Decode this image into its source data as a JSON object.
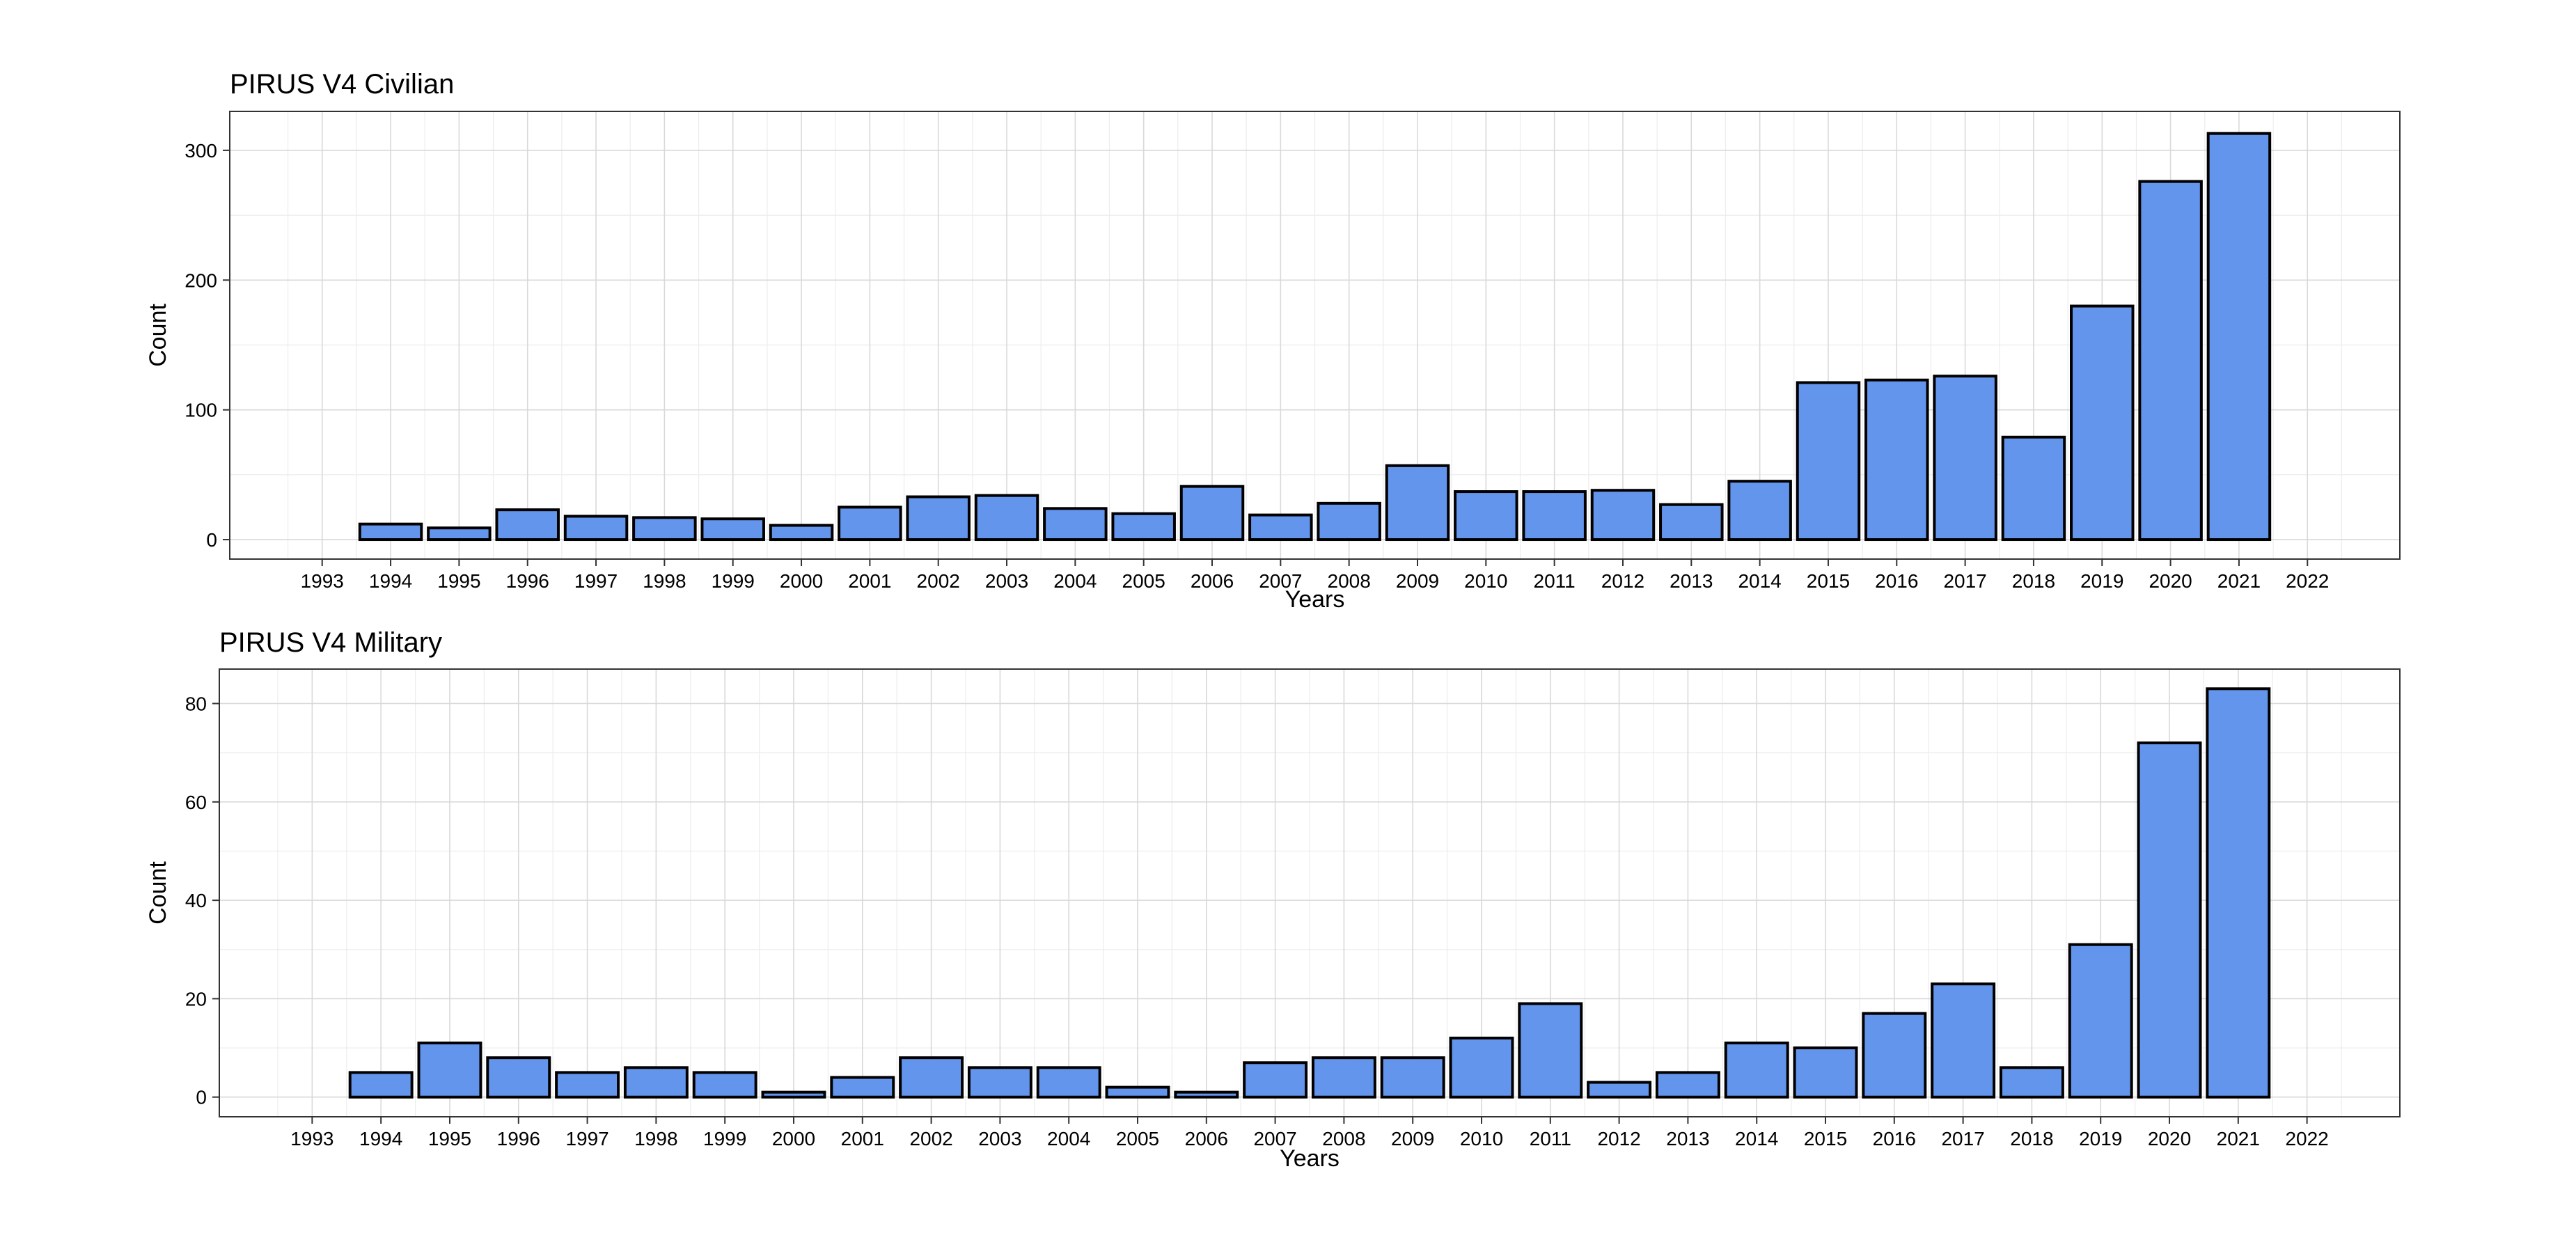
{
  "colors": {
    "bar_fill": "#6495ED",
    "bar_stroke": "#000000"
  },
  "chart_data": [
    {
      "type": "bar",
      "title": "PIRUS V4 Civilian",
      "xlabel": "Years",
      "ylabel": "Count",
      "xlim": [
        1993,
        2022
      ],
      "x_ticks": [
        "1993",
        "1994",
        "1995",
        "1996",
        "1997",
        "1998",
        "1999",
        "2000",
        "2001",
        "2002",
        "2003",
        "2004",
        "2005",
        "2006",
        "2007",
        "2008",
        "2009",
        "2010",
        "2011",
        "2012",
        "2013",
        "2014",
        "2015",
        "2016",
        "2017",
        "2018",
        "2019",
        "2020",
        "2021",
        "2022"
      ],
      "ylim": [
        -15,
        330
      ],
      "y_ticks": [
        0,
        100,
        200,
        300
      ],
      "grid": true,
      "categories": [
        "1994",
        "1995",
        "1996",
        "1997",
        "1998",
        "1999",
        "2000",
        "2001",
        "2002",
        "2003",
        "2004",
        "2005",
        "2006",
        "2007",
        "2008",
        "2009",
        "2010",
        "2011",
        "2012",
        "2013",
        "2014",
        "2015",
        "2016",
        "2017",
        "2018",
        "2019",
        "2020",
        "2021"
      ],
      "values": [
        12,
        9,
        23,
        18,
        17,
        16,
        11,
        25,
        33,
        34,
        24,
        20,
        41,
        19,
        28,
        57,
        37,
        37,
        38,
        27,
        45,
        121,
        123,
        126,
        79,
        180,
        276,
        313
      ]
    },
    {
      "type": "bar",
      "title": "PIRUS V4 Military",
      "xlabel": "Years",
      "ylabel": "Count",
      "xlim": [
        1993,
        2022
      ],
      "x_ticks": [
        "1993",
        "1994",
        "1995",
        "1996",
        "1997",
        "1998",
        "1999",
        "2000",
        "2001",
        "2002",
        "2003",
        "2004",
        "2005",
        "2006",
        "2007",
        "2008",
        "2009",
        "2010",
        "2011",
        "2012",
        "2013",
        "2014",
        "2015",
        "2016",
        "2017",
        "2018",
        "2019",
        "2020",
        "2021",
        "2022"
      ],
      "ylim": [
        -4,
        87
      ],
      "y_ticks": [
        0,
        20,
        40,
        60,
        80
      ],
      "grid": true,
      "categories": [
        "1994",
        "1995",
        "1996",
        "1997",
        "1998",
        "1999",
        "2000",
        "2001",
        "2002",
        "2003",
        "2004",
        "2005",
        "2006",
        "2007",
        "2008",
        "2009",
        "2010",
        "2011",
        "2012",
        "2013",
        "2014",
        "2015",
        "2016",
        "2017",
        "2018",
        "2019",
        "2020",
        "2021"
      ],
      "values": [
        5,
        11,
        8,
        5,
        6,
        5,
        1,
        4,
        8,
        6,
        6,
        2,
        1,
        7,
        8,
        8,
        12,
        19,
        3,
        5,
        11,
        10,
        17,
        23,
        6,
        31,
        72,
        83
      ]
    }
  ]
}
